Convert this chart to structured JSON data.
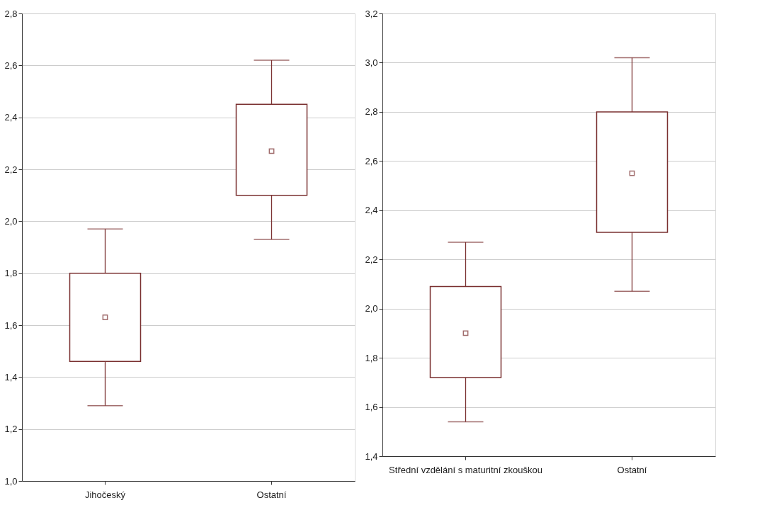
{
  "chart_data": [
    {
      "type": "box",
      "categories": [
        "Jihočeský",
        "Ostatní"
      ],
      "series": [
        {
          "color": "#7a3030",
          "boxes": [
            {
              "low": 1.29,
              "q1": 1.46,
              "median": 1.63,
              "q3": 1.8,
              "high": 1.97
            },
            {
              "low": 1.93,
              "q1": 2.1,
              "median": 2.27,
              "q3": 2.45,
              "high": 2.62
            }
          ]
        }
      ],
      "marker": "square",
      "ylim": [
        1.0,
        2.8
      ],
      "yticks": [
        {
          "value": 1.0,
          "label": "1,0"
        },
        {
          "value": 1.2,
          "label": "1,2"
        },
        {
          "value": 1.4,
          "label": "1,4"
        },
        {
          "value": 1.6,
          "label": "1,6"
        },
        {
          "value": 1.8,
          "label": "1,8"
        },
        {
          "value": 2.0,
          "label": "2,0"
        },
        {
          "value": 2.2,
          "label": "2,2"
        },
        {
          "value": 2.4,
          "label": "2,4"
        },
        {
          "value": 2.6,
          "label": "2,6"
        },
        {
          "value": 2.8,
          "label": "2,8"
        }
      ],
      "grid": "y"
    },
    {
      "type": "box",
      "categories": [
        "Střední vzdělání s maturitní zkouškou",
        "Ostatní"
      ],
      "series": [
        {
          "color": "#7a3030",
          "boxes": [
            {
              "low": 1.54,
              "q1": 1.72,
              "median": 1.9,
              "q3": 2.09,
              "high": 2.27
            },
            {
              "low": 2.07,
              "q1": 2.31,
              "median": 2.55,
              "q3": 2.8,
              "high": 3.02
            }
          ]
        }
      ],
      "marker": "square",
      "ylim": [
        1.4,
        3.2
      ],
      "yticks": [
        {
          "value": 1.4,
          "label": "1,4"
        },
        {
          "value": 1.6,
          "label": "1,6"
        },
        {
          "value": 1.8,
          "label": "1,8"
        },
        {
          "value": 2.0,
          "label": "2,0"
        },
        {
          "value": 2.2,
          "label": "2,2"
        },
        {
          "value": 2.4,
          "label": "2,4"
        },
        {
          "value": 2.6,
          "label": "2,6"
        },
        {
          "value": 2.8,
          "label": "2,8"
        },
        {
          "value": 3.0,
          "label": "3,0"
        },
        {
          "value": 3.2,
          "label": "3,2"
        }
      ],
      "grid": "y"
    }
  ]
}
